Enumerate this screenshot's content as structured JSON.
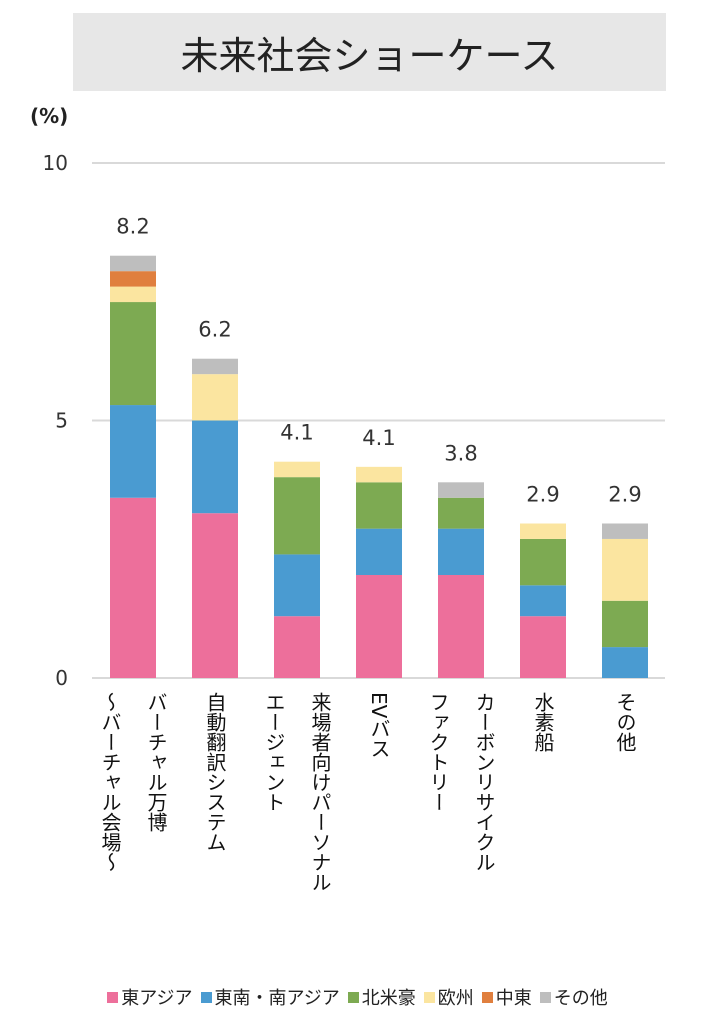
{
  "chart_data": {
    "type": "bar",
    "stacked": true,
    "title": "未来社会ショーケース",
    "ylabel": "(%)",
    "ylim": [
      0,
      10
    ],
    "yticks": [
      0,
      5,
      10
    ],
    "grid": true,
    "legend_position": "bottom",
    "categories": [
      "バーチャル万博\n～バーチャル会場～",
      "自動翻訳システム",
      "来場者向けパーソナル\nエージェント",
      "EVバス",
      "カーボンリサイクル\nファクトリー",
      "水素船",
      "その他"
    ],
    "totals": [
      "8.2",
      "6.2",
      "4.1",
      "4.1",
      "3.8",
      "2.9",
      "2.9"
    ],
    "series": [
      {
        "name": "東アジア",
        "color": "#ED6F9B",
        "values": [
          3.5,
          3.2,
          1.2,
          2.0,
          2.0,
          1.2,
          0
        ]
      },
      {
        "name": "東南・南アジア",
        "color": "#4A9BD1",
        "values": [
          1.8,
          1.8,
          1.2,
          0.9,
          0.9,
          0.6,
          0.6
        ]
      },
      {
        "name": "北米豪",
        "color": "#7DAA52",
        "values": [
          2.0,
          0,
          1.5,
          0.9,
          0.6,
          0.9,
          0.9
        ]
      },
      {
        "name": "欧州",
        "color": "#FBE5A0",
        "values": [
          0.3,
          0.9,
          0.3,
          0.3,
          0,
          0.3,
          1.2
        ]
      },
      {
        "name": "中東",
        "color": "#E07F3E",
        "values": [
          0.3,
          0,
          0,
          0,
          0,
          0,
          0
        ]
      },
      {
        "name": "その他",
        "color": "#BEBEBE",
        "values": [
          0.3,
          0.3,
          0,
          0,
          0.3,
          0,
          0.3
        ]
      }
    ]
  }
}
